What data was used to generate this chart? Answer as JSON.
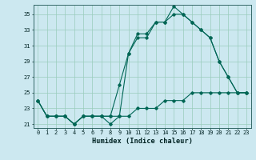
{
  "xlabel": "Humidex (Indice chaleur)",
  "bg_color": "#cce8f0",
  "grid_color": "#99ccbb",
  "line_color": "#006655",
  "xlim": [
    -0.5,
    23.5
  ],
  "ylim": [
    20.5,
    36.2
  ],
  "xticks": [
    0,
    1,
    2,
    3,
    4,
    5,
    6,
    7,
    8,
    9,
    10,
    11,
    12,
    13,
    14,
    15,
    16,
    17,
    18,
    19,
    20,
    21,
    22,
    23
  ],
  "yticks": [
    21,
    23,
    25,
    27,
    29,
    31,
    33,
    35
  ],
  "line1_y": [
    24,
    22,
    22,
    22,
    21,
    22,
    22,
    22,
    21,
    22,
    30,
    32,
    32,
    34,
    34,
    36,
    35,
    34,
    33,
    32,
    29,
    27,
    25,
    25
  ],
  "line2_y": [
    24,
    22,
    22,
    22,
    21,
    22,
    22,
    22,
    22,
    26,
    30,
    32.5,
    32.5,
    34,
    34,
    35,
    35,
    34,
    33,
    32,
    29,
    27,
    25,
    25
  ],
  "line3_y": [
    24,
    22,
    22,
    22,
    21,
    22,
    22,
    22,
    22,
    22,
    22,
    23,
    23,
    23,
    24,
    24,
    24,
    25,
    25,
    25,
    25,
    25,
    25,
    25
  ],
  "tick_fontsize": 5.0,
  "xlabel_fontsize": 6.2
}
